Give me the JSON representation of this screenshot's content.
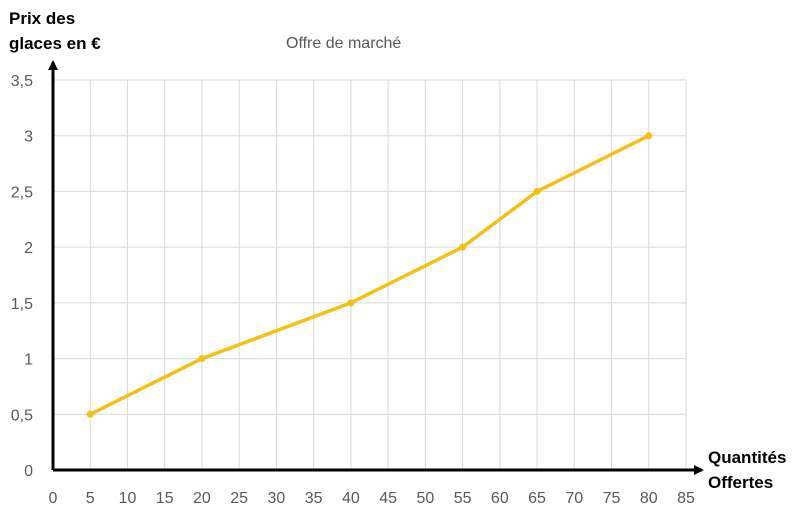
{
  "chart_data": {
    "type": "line",
    "title": "Offre de marché",
    "ylabel": "Prix des\nglaces en €",
    "xlabel": "Quantités\nOffertes",
    "xticks": [
      "0",
      "5",
      "10",
      "15",
      "20",
      "25",
      "30",
      "35",
      "40",
      "45",
      "50",
      "55",
      "60",
      "65",
      "70",
      "75",
      "80",
      "85"
    ],
    "yticks": [
      "0",
      "0,5",
      "1",
      "1,5",
      "2",
      "2,5",
      "3",
      "3,5"
    ],
    "xlim": [
      0,
      85
    ],
    "ylim": [
      0,
      3.5
    ],
    "grid": true,
    "legend": "none",
    "series": [
      {
        "points": [
          {
            "x": 5,
            "y": 0.5
          },
          {
            "x": 20,
            "y": 1
          },
          {
            "x": 40,
            "y": 1.5
          },
          {
            "x": 55,
            "y": 2
          },
          {
            "x": 65,
            "y": 2.5
          },
          {
            "x": 80,
            "y": 3
          }
        ],
        "color": "#f5c013"
      }
    ]
  }
}
